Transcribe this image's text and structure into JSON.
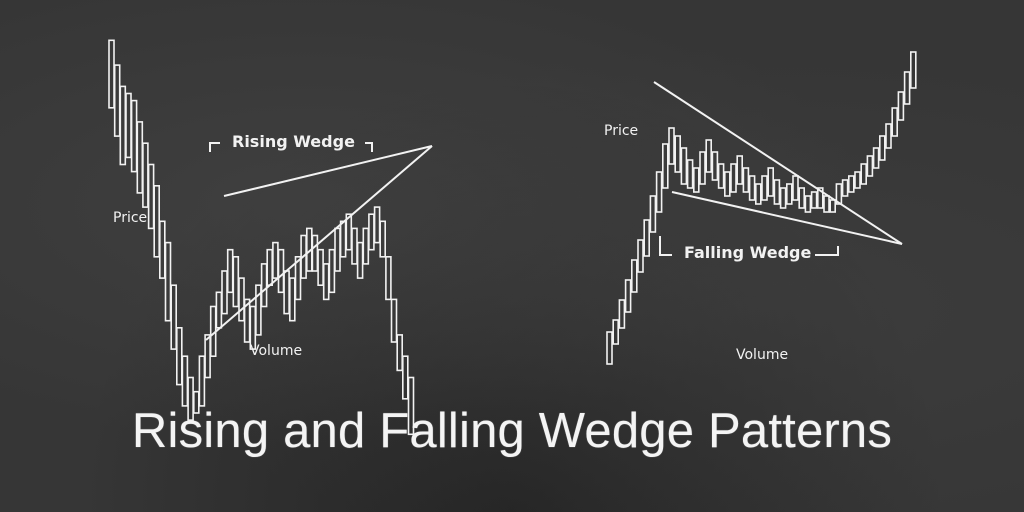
{
  "title": "Rising and Falling Wedge Patterns",
  "colors": {
    "board": "#363636",
    "chalk": "#f2f2f2"
  },
  "left_diagram": {
    "pattern_label": "Rising Wedge",
    "price_label": "Price",
    "volume_label": "Volume",
    "bars": [
      {
        "h": 45,
        "l": 26
      },
      {
        "h": 38,
        "l": 18
      },
      {
        "h": 32,
        "l": 10
      },
      {
        "h": 30,
        "l": 12
      },
      {
        "h": 28,
        "l": 8
      },
      {
        "h": 22,
        "l": 2
      },
      {
        "h": 16,
        "l": -2
      },
      {
        "h": 10,
        "l": -8
      },
      {
        "h": 4,
        "l": -16
      },
      {
        "h": -6,
        "l": -22
      },
      {
        "h": -12,
        "l": -34
      },
      {
        "h": -24,
        "l": -42
      },
      {
        "h": -36,
        "l": -52
      },
      {
        "h": -44,
        "l": -58
      },
      {
        "h": -50,
        "l": -62
      },
      {
        "h": -54,
        "l": -60
      },
      {
        "h": -44,
        "l": -58
      },
      {
        "h": -38,
        "l": -50
      },
      {
        "h": -30,
        "l": -44
      },
      {
        "h": -26,
        "l": -36
      },
      {
        "h": -20,
        "l": -32
      },
      {
        "h": -14,
        "l": -26
      },
      {
        "h": -16,
        "l": -30
      },
      {
        "h": -22,
        "l": -34
      },
      {
        "h": -28,
        "l": -40
      },
      {
        "h": -30,
        "l": -42
      },
      {
        "h": -24,
        "l": -38
      },
      {
        "h": -18,
        "l": -30
      },
      {
        "h": -14,
        "l": -24
      },
      {
        "h": -12,
        "l": -22
      },
      {
        "h": -14,
        "l": -26
      },
      {
        "h": -20,
        "l": -32
      },
      {
        "h": -22,
        "l": -34
      },
      {
        "h": -16,
        "l": -28
      },
      {
        "h": -10,
        "l": -22
      },
      {
        "h": -8,
        "l": -20
      },
      {
        "h": -10,
        "l": -20
      },
      {
        "h": -14,
        "l": -24
      },
      {
        "h": -18,
        "l": -28
      },
      {
        "h": -14,
        "l": -26
      },
      {
        "h": -8,
        "l": -20
      },
      {
        "h": -6,
        "l": -16
      },
      {
        "h": -4,
        "l": -14
      },
      {
        "h": -8,
        "l": -18
      },
      {
        "h": -12,
        "l": -22
      },
      {
        "h": -8,
        "l": -18
      },
      {
        "h": -4,
        "l": -14
      },
      {
        "h": -2,
        "l": -12
      },
      {
        "h": -6,
        "l": -16
      },
      {
        "h": -16,
        "l": -28
      },
      {
        "h": -28,
        "l": -40
      },
      {
        "h": -38,
        "l": -48
      },
      {
        "h": -44,
        "l": -56
      },
      {
        "h": -50,
        "l": -66
      }
    ]
  },
  "right_diagram": {
    "pattern_label": "Falling Wedge",
    "price_label": "Price",
    "volume_label": "Volume",
    "bars": [
      {
        "h": -60,
        "l": -76
      },
      {
        "h": -54,
        "l": -66
      },
      {
        "h": -44,
        "l": -58
      },
      {
        "h": -34,
        "l": -50
      },
      {
        "h": -24,
        "l": -40
      },
      {
        "h": -14,
        "l": -30
      },
      {
        "h": -4,
        "l": -22
      },
      {
        "h": 8,
        "l": -10
      },
      {
        "h": 20,
        "l": 0
      },
      {
        "h": 34,
        "l": 12
      },
      {
        "h": 42,
        "l": 24
      },
      {
        "h": 38,
        "l": 20
      },
      {
        "h": 32,
        "l": 14
      },
      {
        "h": 26,
        "l": 12
      },
      {
        "h": 22,
        "l": 10
      },
      {
        "h": 30,
        "l": 14
      },
      {
        "h": 36,
        "l": 20
      },
      {
        "h": 30,
        "l": 16
      },
      {
        "h": 24,
        "l": 12
      },
      {
        "h": 20,
        "l": 8
      },
      {
        "h": 24,
        "l": 10
      },
      {
        "h": 28,
        "l": 14
      },
      {
        "h": 22,
        "l": 10
      },
      {
        "h": 18,
        "l": 6
      },
      {
        "h": 14,
        "l": 4
      },
      {
        "h": 18,
        "l": 6
      },
      {
        "h": 22,
        "l": 8
      },
      {
        "h": 16,
        "l": 4
      },
      {
        "h": 12,
        "l": 2
      },
      {
        "h": 14,
        "l": 4
      },
      {
        "h": 18,
        "l": 6
      },
      {
        "h": 12,
        "l": 2
      },
      {
        "h": 8,
        "l": 0
      },
      {
        "h": 10,
        "l": 2
      },
      {
        "h": 12,
        "l": 2
      },
      {
        "h": 8,
        "l": 0
      },
      {
        "h": 6,
        "l": 0
      },
      {
        "h": 14,
        "l": 4
      },
      {
        "h": 16,
        "l": 8
      },
      {
        "h": 18,
        "l": 10
      },
      {
        "h": 20,
        "l": 12
      },
      {
        "h": 24,
        "l": 14
      },
      {
        "h": 28,
        "l": 18
      },
      {
        "h": 32,
        "l": 22
      },
      {
        "h": 38,
        "l": 26
      },
      {
        "h": 44,
        "l": 32
      },
      {
        "h": 52,
        "l": 38
      },
      {
        "h": 60,
        "l": 46
      },
      {
        "h": 70,
        "l": 54
      },
      {
        "h": 80,
        "l": 62
      }
    ]
  }
}
